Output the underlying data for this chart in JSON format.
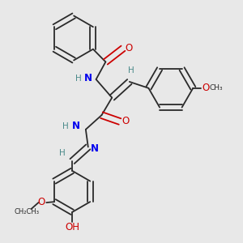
{
  "background_color": "#e8e8e8",
  "bond_color": "#2a2a2a",
  "N_color": "#0000ee",
  "O_color": "#cc0000",
  "H_color": "#4a8a8a",
  "C_color": "#2a2a2a",
  "figsize": [
    3.0,
    3.0
  ],
  "dpi": 100,
  "xlim": [
    0,
    3.0
  ],
  "ylim": [
    0,
    3.0
  ]
}
